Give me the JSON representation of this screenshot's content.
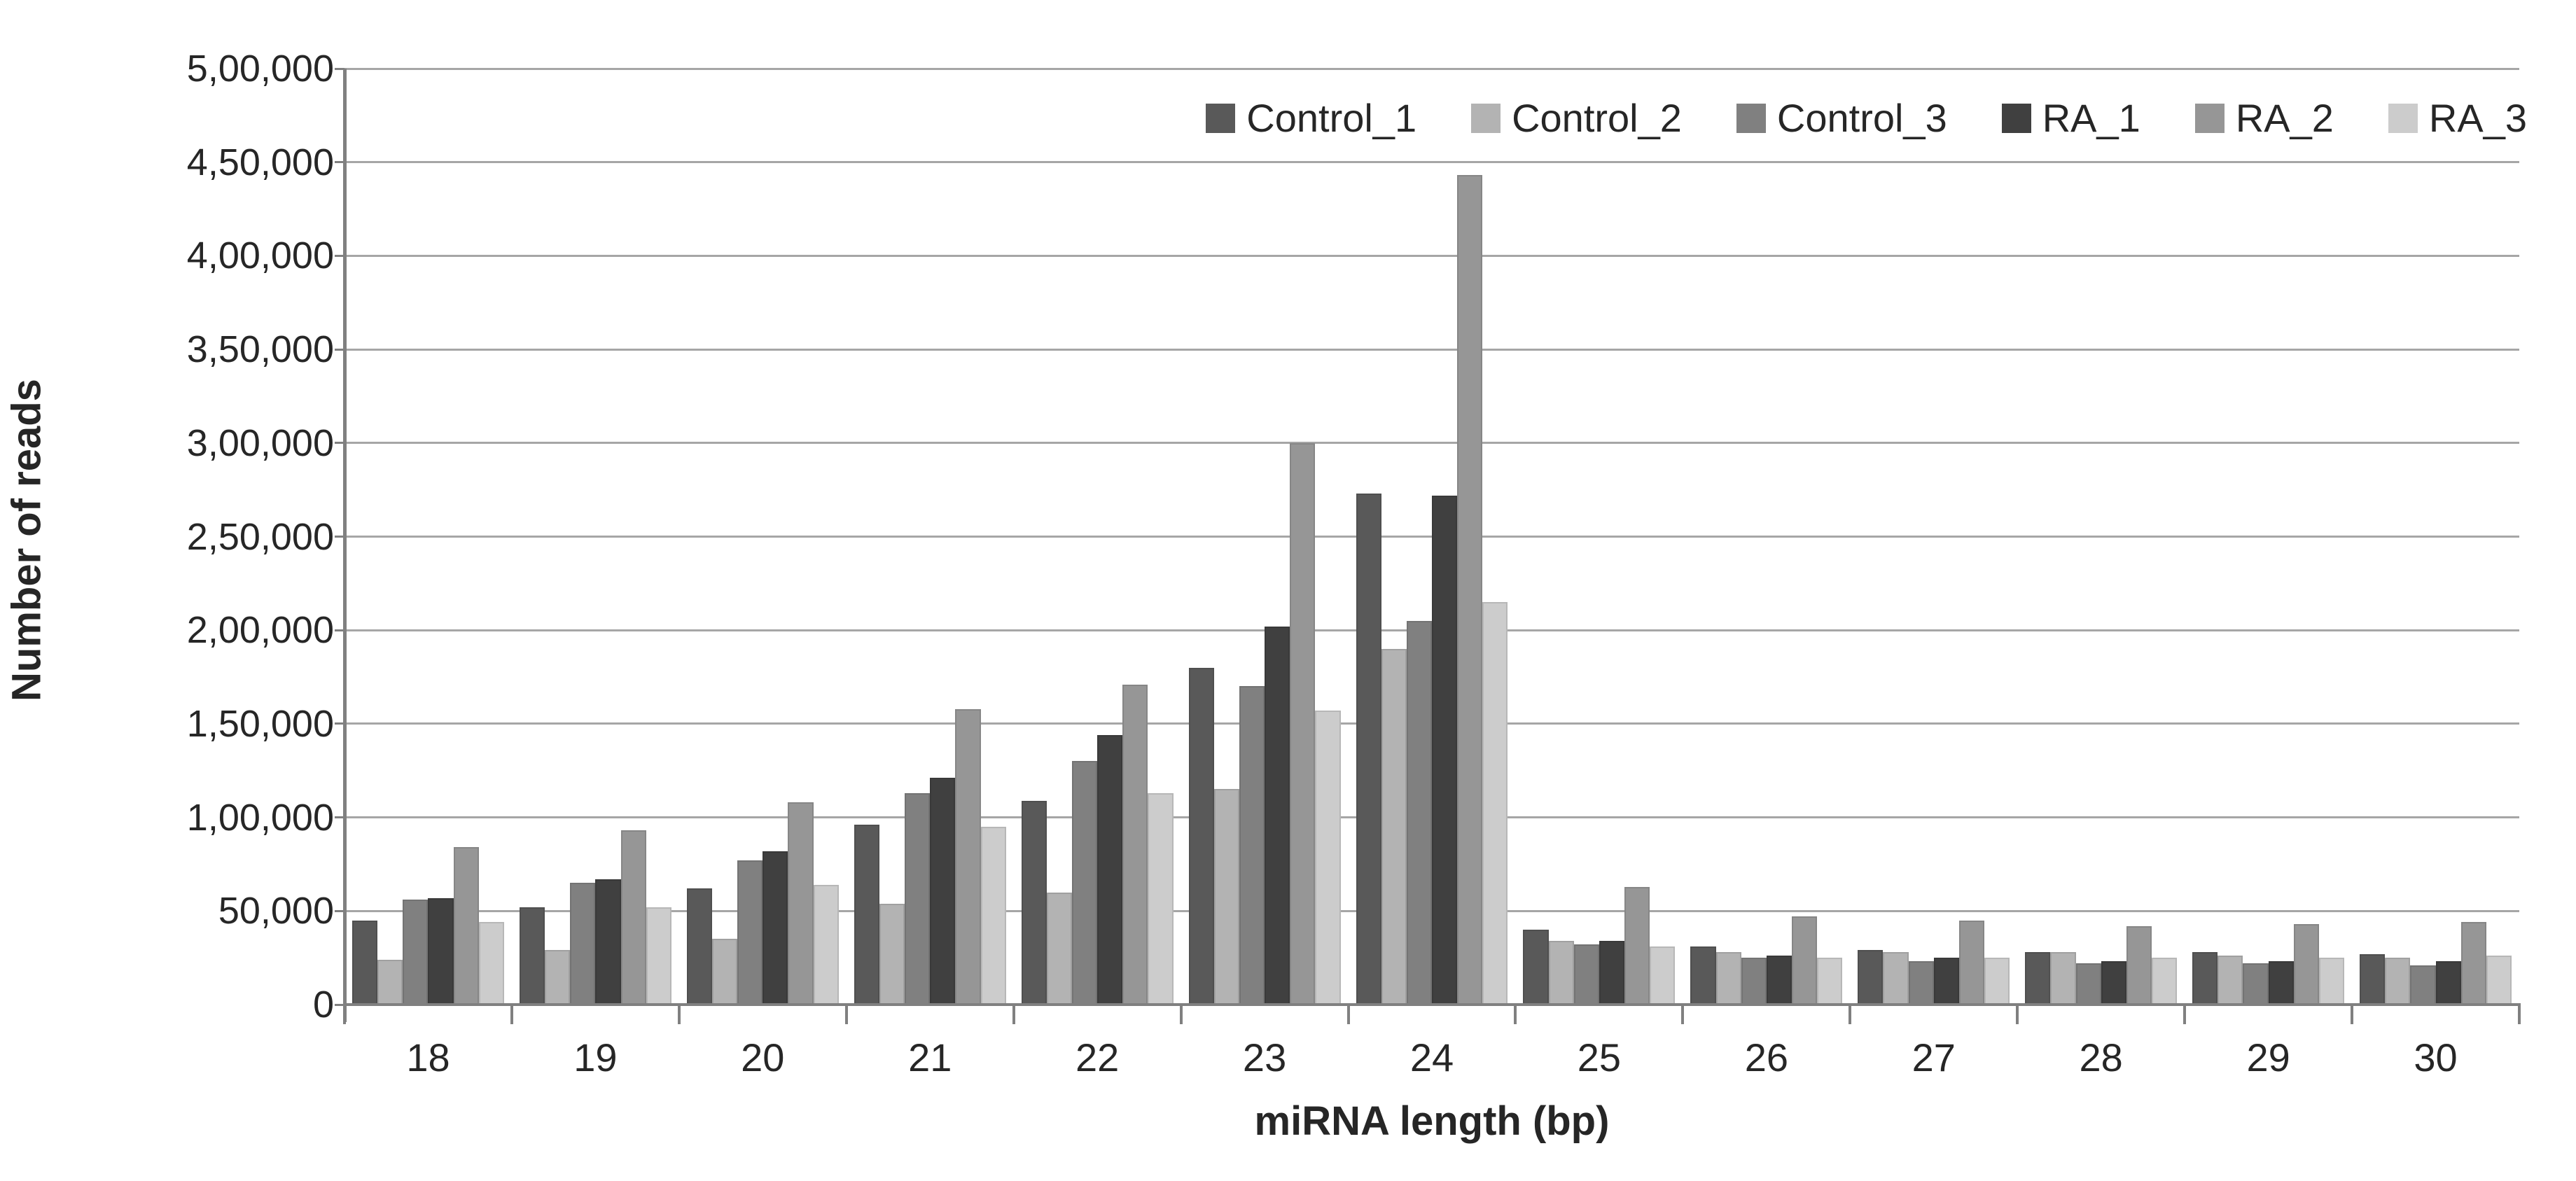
{
  "chart_data": {
    "type": "bar",
    "title": "",
    "xlabel": "miRNA length (bp)",
    "ylabel": "Number of reads",
    "categories": [
      "18",
      "19",
      "20",
      "21",
      "22",
      "23",
      "24",
      "25",
      "26",
      "27",
      "28",
      "29",
      "30"
    ],
    "series": [
      {
        "name": "Control_1",
        "color": "#595959",
        "values": [
          45000,
          52000,
          62000,
          96000,
          109000,
          180000,
          273000,
          40000,
          31000,
          29000,
          28000,
          28000,
          27000
        ]
      },
      {
        "name": "Control_2",
        "color": "#b3b3b3",
        "values": [
          24000,
          29000,
          35000,
          54000,
          60000,
          115000,
          190000,
          34000,
          28000,
          28000,
          28000,
          26000,
          25000
        ]
      },
      {
        "name": "Control_3",
        "color": "#808080",
        "values": [
          56000,
          65000,
          77000,
          113000,
          130000,
          170000,
          205000,
          32000,
          25000,
          23000,
          22000,
          22000,
          21000
        ]
      },
      {
        "name": "RA_1",
        "color": "#404040",
        "values": [
          57000,
          67000,
          82000,
          121000,
          144000,
          202000,
          272000,
          34000,
          26000,
          25000,
          23000,
          23000,
          23000
        ]
      },
      {
        "name": "RA_2",
        "color": "#969696",
        "values": [
          84000,
          93000,
          108000,
          158000,
          171000,
          300000,
          443000,
          63000,
          47000,
          45000,
          42000,
          43000,
          44000
        ]
      },
      {
        "name": "RA_3",
        "color": "#cccccc",
        "values": [
          44000,
          52000,
          64000,
          95000,
          113000,
          157000,
          215000,
          31000,
          25000,
          25000,
          25000,
          25000,
          26000
        ]
      }
    ],
    "ylim": [
      0,
      500000
    ],
    "ytick_step": 50000,
    "yticks": [
      "0",
      "50,000",
      "1,00,000",
      "1,50,000",
      "2,00,000",
      "2,50,000",
      "3,00,000",
      "3,50,000",
      "4,00,000",
      "4,50,000",
      "5,00,000"
    ],
    "grid": true,
    "legend_position": "top-right"
  }
}
